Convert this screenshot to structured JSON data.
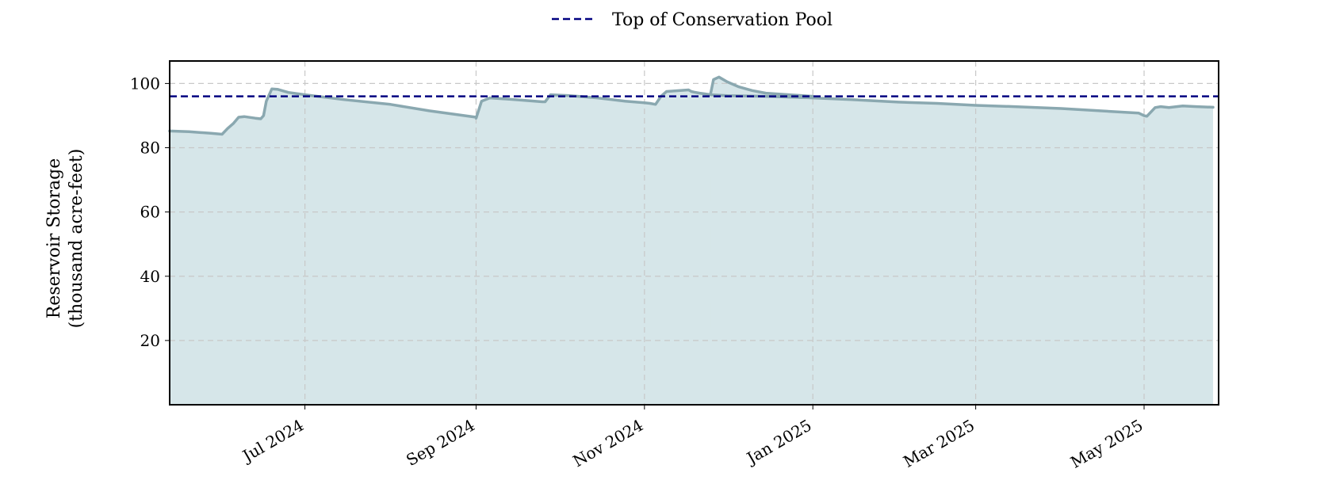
{
  "chart_data": {
    "type": "area",
    "title": "",
    "xlabel": "",
    "ylabel": [
      "Reservoir Storage",
      "(thousand acre-feet)"
    ],
    "x_ticks": [
      "Jul 2024",
      "Sep 2024",
      "Nov 2024",
      "Jan 2025",
      "Mar 2025",
      "May 2025"
    ],
    "x_range": [
      "2024-05-13",
      "2025-05-28"
    ],
    "y_ticks": [
      20,
      40,
      60,
      80,
      100
    ],
    "ylim": [
      0,
      107
    ],
    "grid": true,
    "legend": {
      "position": "top-center",
      "entries": [
        "Top of Conservation Pool"
      ]
    },
    "reference_line": {
      "name": "Top of Conservation Pool",
      "value": 96
    },
    "colors": {
      "line": "#8aa8b0",
      "fill": "#d6e6e9",
      "reference": "#000080"
    },
    "series": [
      {
        "x": [
          "2024-05-13",
          "2024-05-20",
          "2024-05-28",
          "2024-06-01",
          "2024-06-03",
          "2024-06-05",
          "2024-06-07",
          "2024-06-09",
          "2024-06-13",
          "2024-06-15",
          "2024-06-16",
          "2024-06-17",
          "2024-06-19",
          "2024-06-21",
          "2024-06-25",
          "2024-07-01",
          "2024-07-15",
          "2024-08-01",
          "2024-08-15",
          "2024-09-01",
          "2024-09-01",
          "2024-09-03",
          "2024-09-06",
          "2024-09-15",
          "2024-09-25",
          "2024-09-26",
          "2024-09-28",
          "2024-10-05",
          "2024-10-15",
          "2024-10-25",
          "2024-11-01",
          "2024-11-03",
          "2024-11-05",
          "2024-11-07",
          "2024-11-09",
          "2024-11-17",
          "2024-11-18",
          "2024-11-19",
          "2024-11-21",
          "2024-11-25",
          "2024-12-01",
          "2024-12-15",
          "2025-01-01",
          "2025-01-15",
          "2025-02-01",
          "2025-02-15",
          "2025-03-01",
          "2025-03-15",
          "2025-04-01",
          "2025-04-15",
          "2025-04-29",
          "2025-05-01",
          "2025-05-02",
          "2025-05-05",
          "2025-05-07",
          "2025-05-10",
          "2025-05-15",
          "2025-05-20",
          "2025-05-26"
        ],
        "values": [
          85.2,
          85.0,
          84.5,
          84.2,
          86.0,
          87.5,
          89.5,
          89.7,
          89.2,
          89.0,
          90.0,
          94.5,
          98.3,
          98.2,
          97.2,
          96.5,
          95.0,
          93.5,
          91.5,
          89.5,
          89.2,
          94.5,
          95.5,
          95.0,
          94.3,
          94.3,
          96.5,
          96.2,
          95.5,
          94.5,
          94.0,
          93.8,
          93.5,
          96.0,
          97.5,
          98.0,
          97.5,
          97.3,
          97.0,
          96.5,
          96.2,
          96.0,
          95.5,
          95.0,
          94.2,
          93.8,
          93.2,
          92.8,
          92.2,
          91.5,
          90.8,
          90.0,
          89.8,
          92.5,
          92.8,
          92.5,
          93.0,
          92.8,
          92.6
        ]
      },
      {
        "x": [
          "2024-11-25",
          "2024-11-26",
          "2024-11-28",
          "2024-12-01",
          "2024-12-05",
          "2024-12-10",
          "2024-12-15",
          "2024-12-25",
          "2025-01-01"
        ],
        "values": [
          97.0,
          101.2,
          102.0,
          100.5,
          99.0,
          97.8,
          97.0,
          96.4,
          96.0
        ]
      }
    ]
  }
}
